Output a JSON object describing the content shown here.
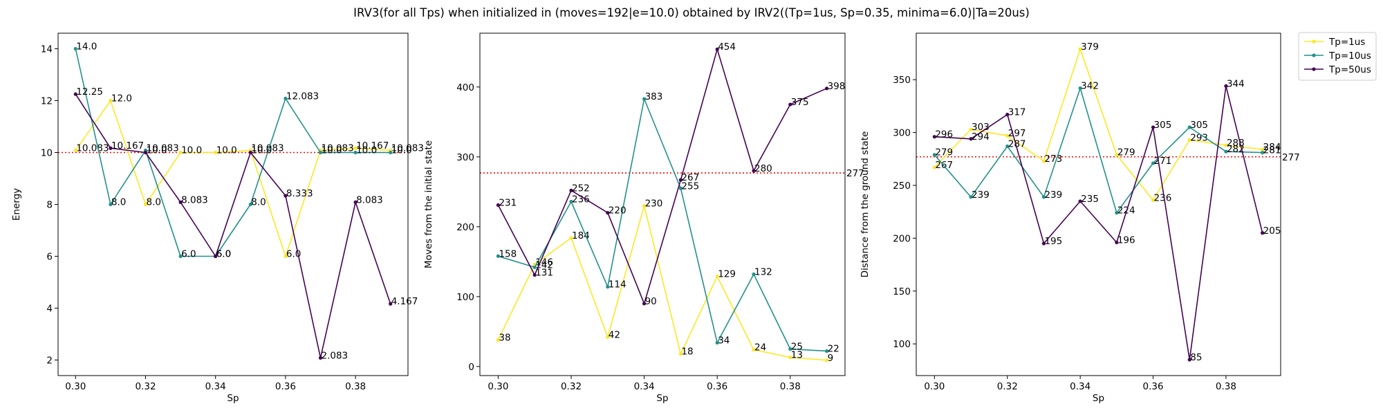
{
  "title": "IRV3(for all Tps) when initialized in (moves=192|e=10.0) obtained by IRV2((Tp=1us, Sp=0.35, minima=6.0)|Ta=20us)",
  "chart_data": [
    {
      "type": "line",
      "xlabel": "Sp",
      "ylabel": "Energy",
      "xlim": [
        0.295,
        0.395
      ],
      "ylim": [
        1.4,
        14.6
      ],
      "xticks": [
        0.3,
        0.32,
        0.34,
        0.36,
        0.38
      ],
      "xtick_labels": [
        "0.30",
        "0.32",
        "0.34",
        "0.36",
        "0.38"
      ],
      "yticks": [
        2,
        4,
        6,
        8,
        10,
        12,
        14
      ],
      "ytick_labels": [
        "2",
        "4",
        "6",
        "8",
        "10",
        "12",
        "14"
      ],
      "x": [
        0.3,
        0.31,
        0.32,
        0.33,
        0.34,
        0.35,
        0.36,
        0.37,
        0.38,
        0.39
      ],
      "reference_line": 10.0,
      "reference_label": "",
      "series": [
        {
          "name": "Tp=1us",
          "color": "#fde725",
          "values": [
            10.083,
            12.0,
            8.0,
            10.0,
            10.0,
            10.083,
            6.0,
            10.083,
            10.167,
            10.083
          ],
          "labels": [
            "10.083",
            "12.0",
            "8.0",
            "10.0",
            "10.0",
            "10.083",
            "6.0",
            "10.083",
            "10.167",
            "10.083"
          ]
        },
        {
          "name": "Tp=10us",
          "color": "#21918c",
          "values": [
            14.0,
            8.0,
            10.083,
            6.0,
            6.0,
            8.0,
            12.083,
            10.0,
            10.0,
            10.0
          ],
          "labels": [
            "14.0",
            "8.0",
            "10.083",
            "6.0",
            "6.0",
            "8.0",
            "12.083",
            "10.0",
            "10.0",
            "10.0"
          ]
        },
        {
          "name": "Tp=50us",
          "color": "#440154",
          "values": [
            12.25,
            10.167,
            10.0,
            8.083,
            6.0,
            10.0,
            8.333,
            2.083,
            8.083,
            4.167
          ],
          "labels": [
            "12.25",
            "10.167",
            "10.0",
            "8.083",
            "6.0",
            "10.0",
            "8.333",
            "2.083",
            "8.083",
            "4.167"
          ]
        }
      ]
    },
    {
      "type": "line",
      "xlabel": "Sp",
      "ylabel": "Moves from the initial state",
      "xlim": [
        0.295,
        0.395
      ],
      "ylim": [
        -13,
        477
      ],
      "xticks": [
        0.3,
        0.32,
        0.34,
        0.36,
        0.38
      ],
      "xtick_labels": [
        "0.30",
        "0.32",
        "0.34",
        "0.36",
        "0.38"
      ],
      "yticks": [
        0,
        100,
        200,
        300,
        400
      ],
      "ytick_labels": [
        "0",
        "100",
        "200",
        "300",
        "400"
      ],
      "x": [
        0.3,
        0.31,
        0.32,
        0.33,
        0.34,
        0.35,
        0.36,
        0.37,
        0.38,
        0.39
      ],
      "reference_line": 277,
      "reference_label": "277",
      "series": [
        {
          "name": "Tp=1us",
          "color": "#fde725",
          "values": [
            38,
            146,
            184,
            42,
            230,
            18,
            129,
            24,
            13,
            9
          ],
          "labels": [
            "38",
            "146",
            "184",
            "42",
            "230",
            "18",
            "129",
            "24",
            "13",
            "9"
          ]
        },
        {
          "name": "Tp=10us",
          "color": "#21918c",
          "values": [
            158,
            142,
            236,
            114,
            383,
            255,
            34,
            132,
            25,
            22
          ],
          "labels": [
            "158",
            "142",
            "236",
            "114",
            "383",
            "255",
            "34",
            "132",
            "25",
            "22"
          ]
        },
        {
          "name": "Tp=50us",
          "color": "#440154",
          "values": [
            231,
            131,
            252,
            220,
            90,
            267,
            454,
            280,
            375,
            398
          ],
          "labels": [
            "231",
            "131",
            "252",
            "220",
            "90",
            "267",
            "454",
            "280",
            "375",
            "398"
          ]
        }
      ]
    },
    {
      "type": "line",
      "xlabel": "Sp",
      "ylabel": "Distance from the ground state",
      "xlim": [
        0.295,
        0.395
      ],
      "ylim": [
        70,
        394
      ],
      "xticks": [
        0.3,
        0.32,
        0.34,
        0.36,
        0.38
      ],
      "xtick_labels": [
        "0.30",
        "0.32",
        "0.34",
        "0.36",
        "0.38"
      ],
      "yticks": [
        100,
        150,
        200,
        250,
        300,
        350
      ],
      "ytick_labels": [
        "100",
        "150",
        "200",
        "250",
        "300",
        "350"
      ],
      "x": [
        0.3,
        0.31,
        0.32,
        0.33,
        0.34,
        0.35,
        0.36,
        0.37,
        0.38,
        0.39
      ],
      "reference_line": 277,
      "reference_label": "277",
      "series": [
        {
          "name": "Tp=1us",
          "color": "#fde725",
          "values": [
            267,
            303,
            297,
            273,
            379,
            279,
            236,
            293,
            288,
            284
          ],
          "labels": [
            "267",
            "303",
            "297",
            "273",
            "379",
            "279",
            "236",
            "293",
            "288",
            "284"
          ]
        },
        {
          "name": "Tp=10us",
          "color": "#21918c",
          "values": [
            279,
            239,
            287,
            239,
            342,
            224,
            271,
            305,
            282,
            281
          ],
          "labels": [
            "279",
            "239",
            "287",
            "239",
            "342",
            "224",
            "271",
            "305",
            "282",
            "281"
          ]
        },
        {
          "name": "Tp=50us",
          "color": "#440154",
          "values": [
            296,
            294,
            317,
            195,
            235,
            196,
            305,
            85,
            344,
            205
          ],
          "labels": [
            "296",
            "294",
            "317",
            "195",
            "235",
            "196",
            "305",
            "85",
            "344",
            "205"
          ]
        }
      ]
    }
  ],
  "legend": {
    "placement": "outside top-right",
    "entries": [
      {
        "label": "Tp=1us",
        "color": "#fde725"
      },
      {
        "label": "Tp=10us",
        "color": "#21918c"
      },
      {
        "label": "Tp=50us",
        "color": "#440154"
      }
    ]
  },
  "reference_color": "#ff0000"
}
